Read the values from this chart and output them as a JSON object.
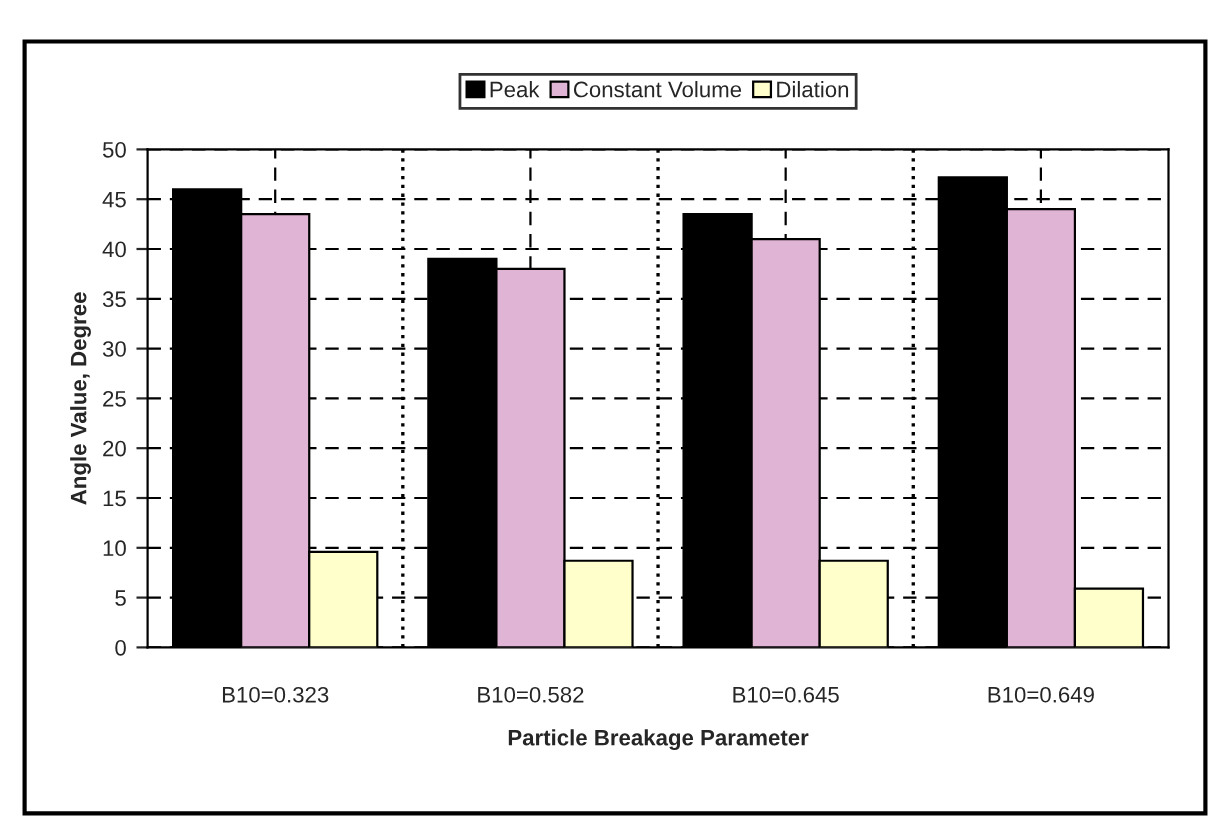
{
  "chart_data": {
    "type": "bar",
    "xlabel": "Particle Breakage Parameter",
    "ylabel": "Angle Value, Degree",
    "categories": [
      "B10=0.323",
      "B10=0.582",
      "B10=0.645",
      "B10=0.649"
    ],
    "series": [
      {
        "name": "Peak",
        "color": "#000000",
        "values": [
          46,
          39,
          43.5,
          47.2
        ]
      },
      {
        "name": "Constant Volume",
        "color": "#e0b4d4",
        "values": [
          43.5,
          38,
          41,
          44
        ]
      },
      {
        "name": "Dilation",
        "color": "#ffffcc",
        "values": [
          9.6,
          8.7,
          8.7,
          5.9
        ]
      }
    ],
    "ylim": [
      0,
      50
    ],
    "yticks": [
      0,
      5,
      10,
      15,
      20,
      25,
      30,
      35,
      40,
      45,
      50
    ],
    "grid": true,
    "legend": "top",
    "line_style": "dashed"
  }
}
